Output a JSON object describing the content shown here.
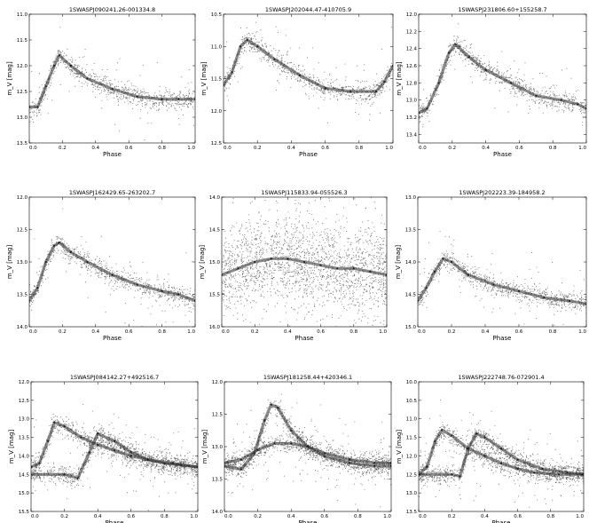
{
  "chart_data": [
    {
      "type": "scatter",
      "title": "1SWASPJ090241.26-001334.8",
      "xlabel": "Phase",
      "ylabel": "m_V [mag]",
      "xlim": [
        0.0,
        1.0
      ],
      "ylim": [
        13.5,
        11.0
      ],
      "inverted_y": true,
      "xticks": [
        "0.0",
        "0.2",
        "0.4",
        "0.6",
        "0.8",
        "1.0"
      ],
      "yticks": [
        "11.0",
        "11.5",
        "12.0",
        "12.5",
        "13.0",
        "13.5"
      ],
      "series": [
        {
          "x": [
            0,
            0.05,
            0.1,
            0.15,
            0.18,
            0.25,
            0.35,
            0.5,
            0.65,
            0.8,
            0.9,
            1.0
          ],
          "y": [
            12.8,
            12.8,
            12.4,
            12.0,
            11.8,
            12.0,
            12.25,
            12.45,
            12.6,
            12.65,
            12.65,
            12.65
          ]
        }
      ],
      "color": "#3a3a3a"
    },
    {
      "type": "scatter",
      "title": "1SWASPJ202044.47-410705.9",
      "xlabel": "Phase",
      "ylabel": "m_V [mag]",
      "xlim": [
        0.0,
        1.0
      ],
      "ylim": [
        12.5,
        10.5
      ],
      "inverted_y": true,
      "xticks": [
        "0.0",
        "0.2",
        "0.4",
        "0.6",
        "0.8",
        "1.0"
      ],
      "yticks": [
        "10.5",
        "11.0",
        "11.5",
        "12.0",
        "12.5"
      ],
      "series": [
        {
          "x": [
            0,
            0.05,
            0.1,
            0.14,
            0.2,
            0.3,
            0.45,
            0.6,
            0.75,
            0.9,
            0.95,
            1.0
          ],
          "y": [
            11.6,
            11.4,
            11.0,
            10.9,
            11.0,
            11.2,
            11.45,
            11.65,
            11.7,
            11.7,
            11.55,
            11.3
          ]
        }
      ],
      "color": "#3a3a3a"
    },
    {
      "type": "scatter",
      "title": "1SWASPJ231806.60+155258.7",
      "xlabel": "Phase",
      "ylabel": "m_V [mag]",
      "xlim": [
        0.0,
        1.0
      ],
      "ylim": [
        13.5,
        12.0
      ],
      "inverted_y": true,
      "xticks": [
        "0.0",
        "0.2",
        "0.4",
        "0.6",
        "0.8",
        "1.0"
      ],
      "yticks": [
        "12.0",
        "12.2",
        "12.4",
        "12.6",
        "12.8",
        "13.0",
        "13.2",
        "13.4"
      ],
      "series": [
        {
          "x": [
            0,
            0.05,
            0.12,
            0.18,
            0.22,
            0.3,
            0.4,
            0.55,
            0.7,
            0.85,
            0.95,
            1.0
          ],
          "y": [
            13.15,
            13.1,
            12.8,
            12.45,
            12.35,
            12.5,
            12.65,
            12.8,
            12.95,
            13.0,
            13.05,
            13.1
          ]
        }
      ],
      "color": "#3a3a3a"
    },
    {
      "type": "scatter",
      "title": "1SWASPJ162429.65-263202.7",
      "xlabel": "Phase",
      "ylabel": "m_V [mag]",
      "xlim": [
        0.0,
        1.0
      ],
      "ylim": [
        14.0,
        12.0
      ],
      "inverted_y": true,
      "xticks": [
        "0.0",
        "0.2",
        "0.4",
        "0.6",
        "0.8",
        "1.0"
      ],
      "yticks": [
        "12.0",
        "12.5",
        "13.0",
        "13.5",
        "14.0"
      ],
      "series": [
        {
          "x": [
            0,
            0.05,
            0.1,
            0.15,
            0.18,
            0.25,
            0.35,
            0.5,
            0.65,
            0.8,
            0.9,
            1.0
          ],
          "y": [
            13.6,
            13.4,
            13.0,
            12.75,
            12.7,
            12.85,
            13.0,
            13.2,
            13.35,
            13.45,
            13.5,
            13.6
          ]
        }
      ],
      "color": "#3a3a3a"
    },
    {
      "type": "scatter",
      "title": "1SWASPJ115833.94-055526.3",
      "xlabel": "Phase",
      "ylabel": "m_V [mag]",
      "xlim": [
        0.0,
        1.0
      ],
      "ylim": [
        16.0,
        14.0
      ],
      "inverted_y": true,
      "xticks": [
        "0.0",
        "0.2",
        "0.4",
        "0.6",
        "0.8",
        "1.0"
      ],
      "yticks": [
        "14.0",
        "14.5",
        "15.0",
        "15.5",
        "16.0"
      ],
      "series": [
        {
          "x": [
            0,
            0.1,
            0.2,
            0.3,
            0.4,
            0.5,
            0.6,
            0.7,
            0.8,
            0.9,
            1.0
          ],
          "y": [
            15.2,
            15.1,
            15.0,
            14.95,
            14.95,
            15.0,
            15.05,
            15.1,
            15.1,
            15.15,
            15.2
          ]
        }
      ],
      "color": "#3a3a3a"
    },
    {
      "type": "scatter",
      "title": "1SWASPJ202223.39-184958.2",
      "xlabel": "Phase",
      "ylabel": "m_V [mag]",
      "xlim": [
        0.0,
        1.0
      ],
      "ylim": [
        15.0,
        13.0
      ],
      "inverted_y": true,
      "xticks": [
        "0.0",
        "0.2",
        "0.4",
        "0.6",
        "0.8",
        "1.0"
      ],
      "yticks": [
        "13.0",
        "13.5",
        "14.0",
        "14.5",
        "15.0"
      ],
      "series": [
        {
          "x": [
            0,
            0.05,
            0.1,
            0.15,
            0.2,
            0.3,
            0.45,
            0.6,
            0.75,
            0.9,
            1.0
          ],
          "y": [
            14.6,
            14.4,
            14.15,
            13.95,
            14.0,
            14.2,
            14.35,
            14.45,
            14.55,
            14.6,
            14.65
          ]
        }
      ],
      "color": "#3a3a3a"
    },
    {
      "type": "scatter",
      "title": "1SWASPJ084142.27+492516.7",
      "xlabel": "Phase",
      "ylabel": "m_V [mag]",
      "xlim": [
        0.0,
        1.0
      ],
      "ylim": [
        15.5,
        12.0
      ],
      "inverted_y": true,
      "xticks": [
        "0.0",
        "0.2",
        "0.4",
        "0.6",
        "0.8",
        "1.0"
      ],
      "yticks": [
        "12.0",
        "12.5",
        "13.0",
        "13.5",
        "14.0",
        "14.5",
        "15.0",
        "15.5"
      ],
      "series": [
        {
          "x": [
            0,
            0.05,
            0.1,
            0.14,
            0.2,
            0.3,
            0.4,
            0.5,
            0.6,
            0.7,
            0.8,
            0.9,
            1.0
          ],
          "y": [
            14.3,
            14.2,
            13.6,
            13.1,
            13.2,
            13.5,
            13.7,
            13.85,
            14.0,
            14.1,
            14.2,
            14.25,
            14.3
          ]
        },
        {
          "x": [
            0.2,
            0.28,
            0.35,
            0.4,
            0.5,
            0.6,
            0.7,
            0.85,
            1.0
          ],
          "y": [
            14.5,
            14.6,
            13.9,
            13.4,
            13.6,
            13.9,
            14.1,
            14.2,
            14.3
          ]
        }
      ],
      "color": "#3a3a3a"
    },
    {
      "type": "scatter",
      "title": "1SWASPJ181258.44+420346.1",
      "xlabel": "Phase",
      "ylabel": "m_V [mag]",
      "xlim": [
        0.0,
        1.0
      ],
      "ylim": [
        14.0,
        12.0
      ],
      "inverted_y": true,
      "xticks": [
        "0.0",
        "0.2",
        "0.4",
        "0.6",
        "0.8",
        "1.0"
      ],
      "yticks": [
        "12.0",
        "12.5",
        "13.0",
        "13.5",
        "14.0"
      ],
      "series": [
        {
          "x": [
            0,
            0.1,
            0.18,
            0.24,
            0.28,
            0.32,
            0.4,
            0.5,
            0.6,
            0.75,
            0.9,
            1.0
          ],
          "y": [
            13.3,
            13.35,
            13.1,
            12.6,
            12.35,
            12.4,
            12.75,
            13.0,
            13.15,
            13.25,
            13.3,
            13.3
          ]
        },
        {
          "x": [
            0,
            0.1,
            0.2,
            0.3,
            0.4,
            0.5,
            0.6,
            0.75,
            0.9,
            1.0
          ],
          "y": [
            13.25,
            13.2,
            13.05,
            12.95,
            12.95,
            13.0,
            13.1,
            13.2,
            13.25,
            13.25
          ]
        }
      ],
      "color": "#3a3a3a"
    },
    {
      "type": "scatter",
      "title": "1SWASPJ222748.76-072901.4",
      "xlabel": "Phase",
      "ylabel": "m_V [mag]",
      "xlim": [
        0.0,
        1.0
      ],
      "ylim": [
        13.5,
        10.0
      ],
      "inverted_y": true,
      "xticks": [
        "0.0",
        "0.2",
        "0.4",
        "0.6",
        "0.8",
        "1.0"
      ],
      "yticks": [
        "10.0",
        "10.5",
        "11.0",
        "11.5",
        "12.0",
        "12.5",
        "13.0",
        "13.5"
      ],
      "series": [
        {
          "x": [
            0,
            0.05,
            0.1,
            0.14,
            0.2,
            0.3,
            0.4,
            0.5,
            0.6,
            0.7,
            0.85,
            1.0
          ],
          "y": [
            12.5,
            12.3,
            11.6,
            11.3,
            11.45,
            11.8,
            12.0,
            12.2,
            12.35,
            12.45,
            12.5,
            12.5
          ]
        },
        {
          "x": [
            0.2,
            0.25,
            0.3,
            0.35,
            0.4,
            0.5,
            0.6,
            0.75,
            0.9,
            1.0
          ],
          "y": [
            12.5,
            12.55,
            11.8,
            11.4,
            11.5,
            11.8,
            12.1,
            12.35,
            12.45,
            12.5
          ]
        }
      ],
      "color": "#3a3a3a"
    }
  ]
}
